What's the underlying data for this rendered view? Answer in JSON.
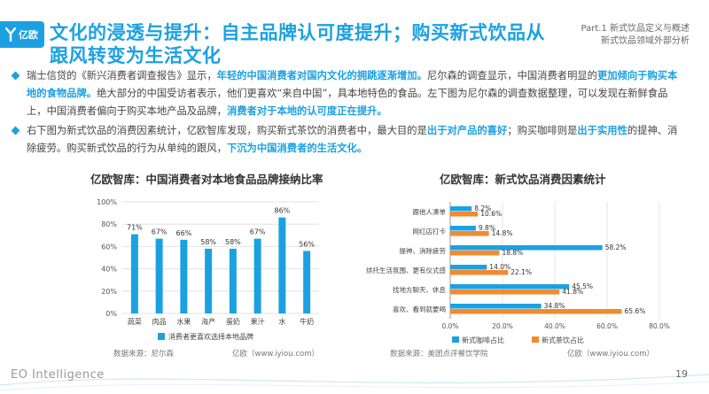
{
  "header": {
    "logo_text": "亿欧",
    "title": "文化的浸透与提升：自主品牌认可度提升；购买新式饮品从跟风转变为生活文化",
    "part_line1": "Part.1 新式饮品定义与概述",
    "part_line2": "新式饮品领域外部分析"
  },
  "paragraphs": [
    {
      "segments": [
        {
          "text": "瑞士信贷的《新兴消费者调查报告》显示，",
          "hl": false
        },
        {
          "text": "年轻的中国消费者对国内文化的拥跳逐渐增加。",
          "hl": true
        },
        {
          "text": "尼尔森的调查显示，中国消费者明显的",
          "hl": false
        },
        {
          "text": "更加倾向于购买本地的食物品牌。",
          "hl": true
        },
        {
          "text": "绝大部分的中国受访者表示，他们更喜欢“来自中国”，具本地特色的食品。左下图为尼尔森的调查数据整理，可以发现在新鲜食品上，中国消费者偏向于购买本地产品及品牌，",
          "hl": false
        },
        {
          "text": "消费者对于本地的认可度正在提升。",
          "hl": true
        }
      ]
    },
    {
      "segments": [
        {
          "text": "右下图为新式饮品的消费因素统计，亿欧智库发现，购买新式茶饮的消费者中，最大目的是",
          "hl": false
        },
        {
          "text": "出于对产品的喜好",
          "hl": true
        },
        {
          "text": "；购买咖啡则是",
          "hl": false
        },
        {
          "text": "出于实用性",
          "hl": true
        },
        {
          "text": "的提神、消除疲劳。购买新式饮品的行为从单纯的跟风，",
          "hl": false
        },
        {
          "text": "下沉为中国消费者的生活文化。",
          "hl": true
        }
      ]
    }
  ],
  "colors": {
    "accent": "#1ba1e2",
    "coffee": "#1ba1e2",
    "tea": "#f28a2e"
  },
  "chart_data": [
    {
      "type": "bar",
      "title": "亿欧智库：中国消费者对本地食品品牌接纳比率",
      "categories": [
        "蔬菜",
        "肉品",
        "水果",
        "海产",
        "蛋奶",
        "果汁",
        "水",
        "牛奶"
      ],
      "series": [
        {
          "name": "消费者更喜欢选择本地品牌",
          "values": [
            71,
            67,
            66,
            58,
            58,
            67,
            86,
            56
          ]
        }
      ],
      "value_labels": [
        "71%",
        "67%",
        "66%",
        "58%",
        "58%",
        "67%",
        "86%",
        "56%"
      ],
      "y_ticks": [
        "0%",
        "20%",
        "40%",
        "60%",
        "80%",
        "100%"
      ],
      "ylim": [
        0,
        100
      ],
      "grid": true,
      "legend": "bottom",
      "source_label": "数据来源：尼尔森",
      "credit": "亿欧（www.iyiou.com）"
    },
    {
      "type": "bar",
      "orientation": "horizontal",
      "title": "亿欧智库：新式饮品消费因素统计",
      "categories": [
        "跟他人凑单",
        "网红店打卡",
        "提神、消除疲劳",
        "烘托生活氛围、更有仪式感",
        "找地方聊天、休息",
        "喜欢、看到就要喝"
      ],
      "series": [
        {
          "name": "新式咖啡占比",
          "values": [
            8.2,
            9.8,
            58.2,
            14.0,
            45.5,
            34.8
          ],
          "labels": [
            "8.2%",
            "9.8%",
            "58.2%",
            "14.0%",
            "45.5%",
            "34.8%"
          ]
        },
        {
          "name": "新式茶饮占比",
          "values": [
            10.6,
            14.8,
            18.8,
            22.1,
            41.8,
            65.6
          ],
          "labels": [
            "10.6%",
            "14.8%",
            "18.8%",
            "22.1%",
            "41.8%",
            "65.6%"
          ]
        }
      ],
      "x_ticks": [
        "0.0%",
        "20.0%",
        "40.0%",
        "60.0%",
        "80.0%"
      ],
      "xlim": [
        0,
        80
      ],
      "grid": true,
      "legend": "bottom",
      "source_label": "数据来源：美团点评餐饮学院",
      "credit": "亿欧（www.iyiou.com）"
    }
  ],
  "footer": {
    "brand": "EO Intelligence",
    "page": "19"
  }
}
